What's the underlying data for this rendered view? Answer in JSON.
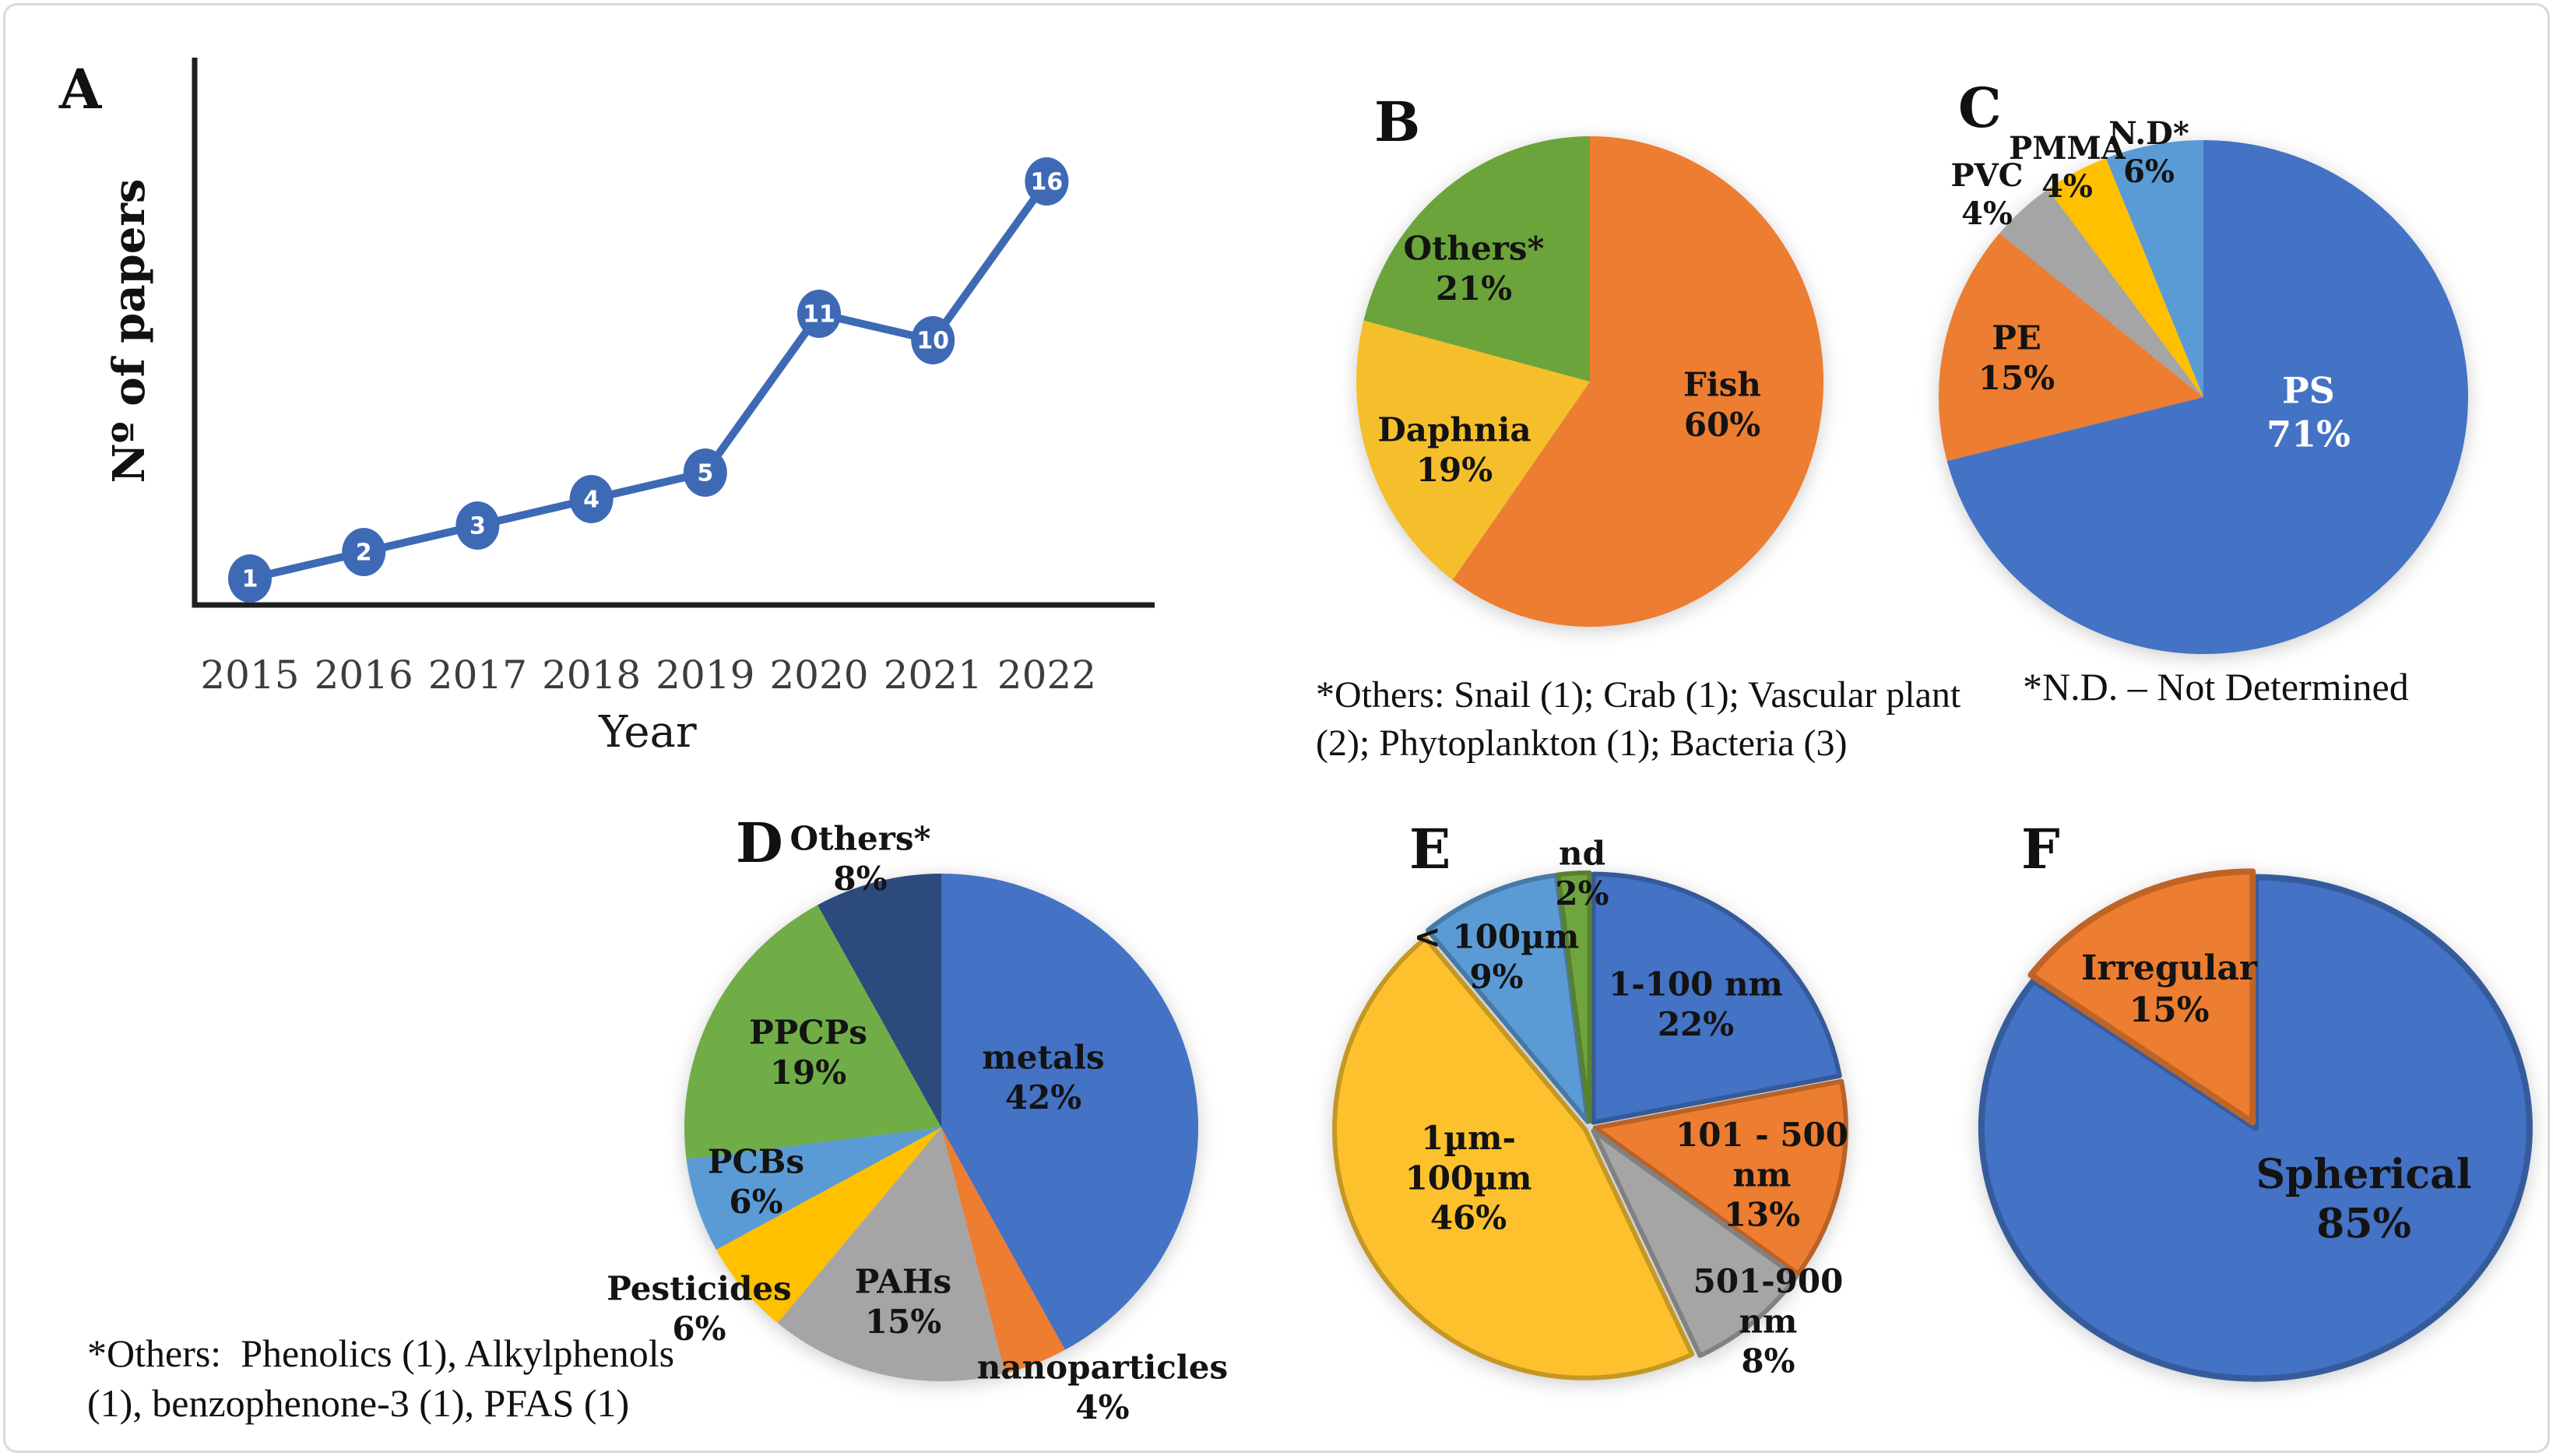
{
  "figure": {
    "background": "#ffffff",
    "border_color": "#d9d9d9"
  },
  "panels": {
    "A": {
      "letter": "A",
      "xlabel": "Year",
      "ylabel": "Nº of papers"
    },
    "B": {
      "letter": "B",
      "footnote_lines": [
        "*Others: Snail (1); Crab (1); Vascular plant",
        "(2); Phytoplankton (1); Bacteria (3)"
      ]
    },
    "C": {
      "letter": "C",
      "footnote_lines": [
        "*N.D. – Not Determined"
      ]
    },
    "D": {
      "letter": "D",
      "footnote_lines": [
        "*Others:  Phenolics (1), Alkylphenols",
        "(1), benzophenone-3 (1), PFAS (1)"
      ]
    },
    "E": {
      "letter": "E"
    },
    "F": {
      "letter": "F"
    }
  },
  "chart_data": [
    {
      "id": "A",
      "type": "line",
      "title": "Number of papers per year",
      "x": [
        "2015",
        "2016",
        "2017",
        "2018",
        "2019",
        "2020",
        "2021",
        "2022"
      ],
      "values": [
        1,
        2,
        3,
        4,
        5,
        11,
        10,
        16
      ],
      "xlabel": "Year",
      "ylabel": "Nº of papers",
      "ylim": [
        0,
        17
      ],
      "grid": false,
      "line_color": "#3E6AB5",
      "marker_color": "#3E6AB5",
      "marker_label_color": "#ffffff",
      "axis_color": "#1f1f1f",
      "tick_color": "#3d3d3d"
    },
    {
      "id": "B",
      "type": "pie",
      "title": "Organisms",
      "slices": [
        {
          "label": "Fish",
          "pct": 60,
          "color": "#ED7D31",
          "label_lines": [
            "Fish",
            "60%"
          ]
        },
        {
          "label": "Daphnia",
          "pct": 19,
          "color": "#F5BF2B",
          "label_lines": [
            "Daphnia",
            "19%"
          ]
        },
        {
          "label": "Others*",
          "pct": 21,
          "color": "#6BA43B",
          "label_lines": [
            "Others*",
            "21%"
          ]
        }
      ]
    },
    {
      "id": "C",
      "type": "pie",
      "title": "Polymer types",
      "slices": [
        {
          "label": "PS",
          "pct": 71,
          "color": "#4472C4",
          "label_lines": [
            "PS",
            "71%"
          ],
          "label_color": "#FFFFFF"
        },
        {
          "label": "PE",
          "pct": 15,
          "color": "#ED7D31",
          "label_lines": [
            "PE",
            "15%"
          ]
        },
        {
          "label": "PVC",
          "pct": 4,
          "color": "#A5A5A5",
          "label_lines": [
            "PVC",
            "4%"
          ]
        },
        {
          "label": "PMMA",
          "pct": 4,
          "color": "#FFC000",
          "label_lines": [
            "PMMA",
            "4%"
          ]
        },
        {
          "label": "N.D*",
          "pct": 6,
          "color": "#5B9BD5",
          "label_lines": [
            "N.D*",
            "6%"
          ]
        }
      ]
    },
    {
      "id": "D",
      "type": "pie",
      "title": "Co-contaminants",
      "slices": [
        {
          "label": "metals",
          "pct": 42,
          "color": "#4472C4",
          "label_lines": [
            "metals",
            "42%"
          ]
        },
        {
          "label": "nanoparticles",
          "pct": 4,
          "color": "#ED7D31",
          "label_lines": [
            "nanoparticles",
            "4%"
          ]
        },
        {
          "label": "PAHs",
          "pct": 15,
          "color": "#A5A5A5",
          "label_lines": [
            "PAHs",
            "15%"
          ]
        },
        {
          "label": "Pesticides",
          "pct": 6,
          "color": "#FFC000",
          "label_lines": [
            "Pesticides",
            "6%"
          ]
        },
        {
          "label": "PCBs",
          "pct": 6,
          "color": "#5B9BD5",
          "label_lines": [
            "PCBs",
            "6%"
          ]
        },
        {
          "label": "PPCPs",
          "pct": 19,
          "color": "#70AD47",
          "label_lines": [
            "PPCPs",
            "19%"
          ]
        },
        {
          "label": "Others*",
          "pct": 8,
          "color": "#2C4B7C",
          "label_lines": [
            "Others*",
            "8%"
          ]
        }
      ]
    },
    {
      "id": "E",
      "type": "pie",
      "title": "Particle sizes",
      "slices": [
        {
          "label": "1-100 nm",
          "pct": 22,
          "color": "#4472C4",
          "label_lines": [
            "1-100 nm",
            "22%"
          ]
        },
        {
          "label": "101 - 500 nm",
          "pct": 13,
          "color": "#ED7D31",
          "label_lines": [
            "101 - 500",
            "nm",
            "13%"
          ]
        },
        {
          "label": "501-900 nm",
          "pct": 8,
          "color": "#A5A5A5",
          "label_lines": [
            "501-900",
            "nm",
            "8%"
          ]
        },
        {
          "label": "1µm-100µm",
          "pct": 46,
          "color": "#FCC12D",
          "label_lines": [
            "1µm-",
            "100µm",
            "46%"
          ]
        },
        {
          "label": "< 100µm",
          "pct": 9,
          "color": "#5B9BD5",
          "label_lines": [
            "< 100µm",
            "9%"
          ]
        },
        {
          "label": "nd",
          "pct": 2,
          "color": "#6FA53F",
          "label_lines": [
            "nd",
            "2%"
          ]
        }
      ]
    },
    {
      "id": "F",
      "type": "pie",
      "title": "Particle shapes",
      "slices": [
        {
          "label": "Spherical",
          "pct": 85,
          "color": "#4472C4",
          "label_lines": [
            "Spherical",
            "85%"
          ]
        },
        {
          "label": "Irregular",
          "pct": 15,
          "color": "#ED7D31",
          "label_lines": [
            "Irregular",
            "15%"
          ]
        }
      ]
    }
  ]
}
